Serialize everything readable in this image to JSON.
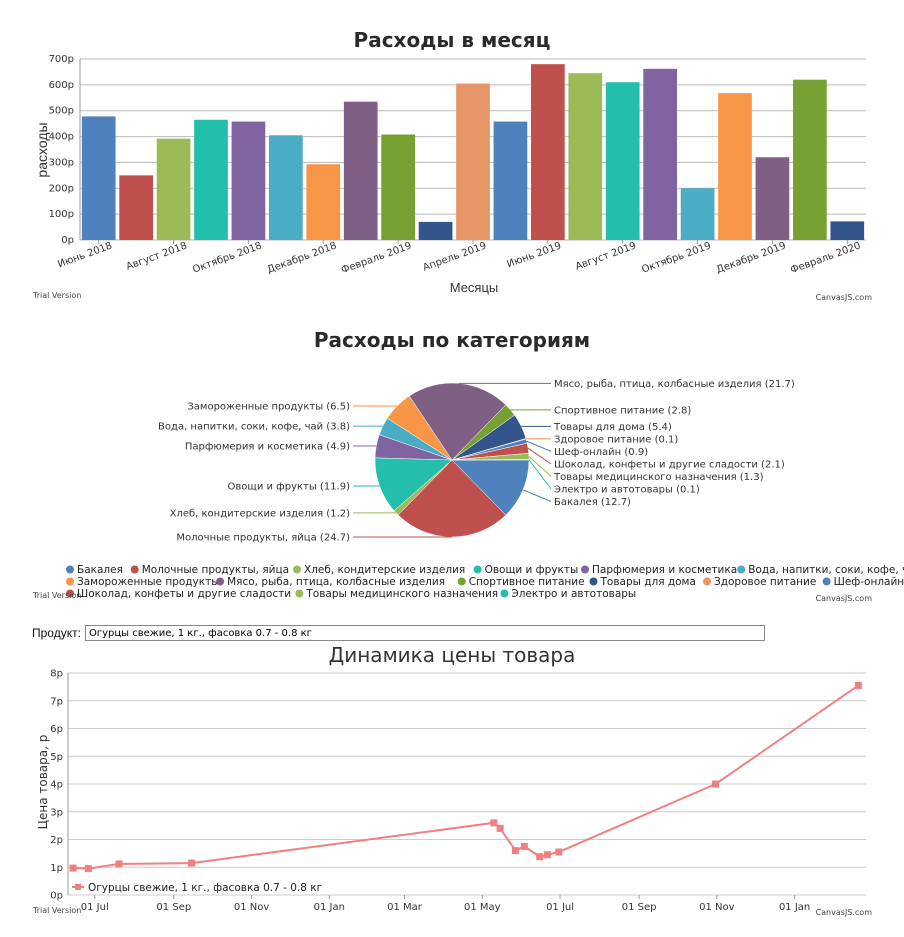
{
  "charts": {
    "monthly": {
      "title": "Расходы в месяц",
      "ylabel": "расходы",
      "xlabel": "Месяцы",
      "trial": "Trial Version",
      "credit": "CanvasJS.com"
    },
    "categories": {
      "title": "Расходы по категориям",
      "trial": "Trial Version",
      "credit": "CanvasJS.com"
    },
    "price": {
      "product_label": "Продукт:",
      "product_value": "Огурцы свежие, 1 кг., фасовка 0.7 - 0.8 кг",
      "title": "Динамика цены товара",
      "ylabel": "Цена товара, р",
      "trial": "Trial Version",
      "credit": "CanvasJS.com"
    }
  },
  "chart_data": [
    {
      "type": "bar",
      "title": "Расходы в месяц",
      "xlabel": "Месяцы",
      "ylabel": "расходы",
      "ylim": [
        0,
        700
      ],
      "yticks": [
        "0р",
        "100р",
        "200р",
        "300р",
        "400р",
        "500р",
        "600р",
        "700р"
      ],
      "grid": true,
      "xtick_labels": [
        "Июнь 2018",
        "Август 2018",
        "Октябрь 2018",
        "Декабрь 2018",
        "Февраль 2019",
        "Апрель 2019",
        "Июнь 2019",
        "Август 2019",
        "Октябрь 2019",
        "Декабрь 2019",
        "Февраль 2020"
      ],
      "values": [
        478,
        250,
        392,
        465,
        458,
        405,
        293,
        535,
        408,
        70,
        605,
        458,
        680,
        645,
        610,
        662,
        200,
        568,
        320,
        620,
        72
      ],
      "colors": [
        "#4F81BC",
        "#C0504E",
        "#9BBB58",
        "#23BFAA",
        "#8064A1",
        "#4AACC5",
        "#F79647",
        "#7F6084",
        "#77A033",
        "#33558B",
        "#E59566",
        "#4F81BC",
        "#C0504E",
        "#9BBB58",
        "#23BFAA",
        "#8064A1",
        "#4AACC5",
        "#F79647",
        "#7F6084",
        "#77A033",
        "#33558B"
      ]
    },
    {
      "type": "pie",
      "title": "Расходы по категориям",
      "slices": [
        {
          "name": "Бакалея",
          "label": "Бакалея (12.7)",
          "value": 12.7,
          "color": "#4F81BC"
        },
        {
          "name": "Молочные продукты, яйца",
          "label": "Молочные продукты, яйца (24.7)",
          "value": 24.7,
          "color": "#C0504E"
        },
        {
          "name": "Хлеб, кондитерские изделия",
          "label": "Хлеб, кондитерские изделия (1.2)",
          "value": 1.2,
          "color": "#9BBB58"
        },
        {
          "name": "Овощи и фрукты",
          "label": "Овощи и фрукты (11.9)",
          "value": 11.9,
          "color": "#23BFAA"
        },
        {
          "name": "Парфюмерия и косметика",
          "label": "Парфюмерия и косметика (4.9)",
          "value": 4.9,
          "color": "#8064A1"
        },
        {
          "name": "Вода, напитки, соки, кофе, чай",
          "label": "Вода, напитки, соки, кофе, чай (3.8)",
          "value": 3.8,
          "color": "#4AACC5"
        },
        {
          "name": "Замороженные продукты",
          "label": "Замороженные продукты (6.5)",
          "value": 6.5,
          "color": "#F79647"
        },
        {
          "name": "Мясо, рыба, птица, колбасные изделия",
          "label": "Мясо, рыба, птица, колбасные изделия (21.7)",
          "value": 21.7,
          "color": "#7F6084"
        },
        {
          "name": "Спортивное питание",
          "label": "Спортивное питание (2.8)",
          "value": 2.8,
          "color": "#77A033"
        },
        {
          "name": "Товары для дома",
          "label": "Товары для дома (5.4)",
          "value": 5.4,
          "color": "#33558B"
        },
        {
          "name": "Здоровое питание",
          "label": "Здоровое питание (0.1)",
          "value": 0.1,
          "color": "#E59566"
        },
        {
          "name": "Шеф-онлайн",
          "label": "Шеф-онлайн (0.9)",
          "value": 0.9,
          "color": "#4F81BC"
        },
        {
          "name": "Шоколад, конфеты и другие сладости",
          "label": "Шоколад, конфеты и другие сладости (2.1)",
          "value": 2.1,
          "color": "#C0504E"
        },
        {
          "name": "Товары медицинского назначения",
          "label": "Товары медицинского назначения (1.3)",
          "value": 1.3,
          "color": "#9BBB58"
        },
        {
          "name": "Электро и автотовары",
          "label": "Электро и автотовары (0.1)",
          "value": 0.1,
          "color": "#23BFAA"
        }
      ],
      "legend": "bottom"
    },
    {
      "type": "line",
      "title": "Динамика цены товара",
      "ylabel": "Цена товара, р",
      "ylim": [
        0,
        8
      ],
      "yticks": [
        "0р",
        "1р",
        "2р",
        "3р",
        "4р",
        "5р",
        "6р",
        "7р",
        "8р"
      ],
      "xtick_labels": [
        "01 Jul",
        "01 Sep",
        "01 Nov",
        "01 Jan",
        "01 Mar",
        "01 May",
        "01 Jul",
        "01 Sep",
        "01 Nov",
        "01 Jan"
      ],
      "x_range": [
        "2018-06-10",
        "2020-02-26"
      ],
      "grid": true,
      "series": [
        {
          "name": "Огурцы свежие, 1 кг., фасовка 0.7 - 0.8 кг",
          "color": "#F08080",
          "points": [
            {
              "x": "2018-06-14",
              "y": 0.97
            },
            {
              "x": "2018-06-26",
              "y": 0.95
            },
            {
              "x": "2018-07-20",
              "y": 1.12
            },
            {
              "x": "2018-09-15",
              "y": 1.15
            },
            {
              "x": "2019-05-10",
              "y": 2.6
            },
            {
              "x": "2019-05-15",
              "y": 2.4
            },
            {
              "x": "2019-05-27",
              "y": 1.6
            },
            {
              "x": "2019-06-03",
              "y": 1.75
            },
            {
              "x": "2019-06-15",
              "y": 1.38
            },
            {
              "x": "2019-06-21",
              "y": 1.45
            },
            {
              "x": "2019-06-30",
              "y": 1.55
            },
            {
              "x": "2019-10-31",
              "y": 4.0
            },
            {
              "x": "2020-02-20",
              "y": 7.55
            }
          ]
        }
      ],
      "legend": "bottom-left"
    }
  ]
}
